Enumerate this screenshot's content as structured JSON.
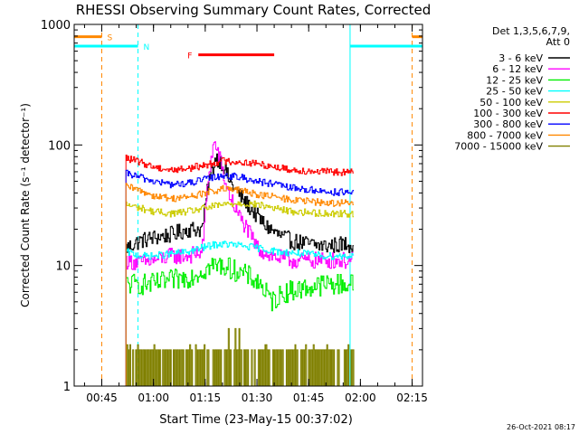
{
  "chart_data": {
    "type": "line",
    "title": "RHESSI Observing Summary Count Rates, Corrected",
    "xlabel": "Start Time (23-May-15 00:37:02)",
    "ylabel": "Corrected Count Rate (s⁻¹ detector⁻¹)",
    "yscale": "log",
    "ylim": [
      1,
      1000
    ],
    "xlim_minutes": [
      37.0,
      138.0
    ],
    "x_ticks": [
      {
        "label": "00:45",
        "value": 45
      },
      {
        "label": "01:00",
        "value": 60
      },
      {
        "label": "01:15",
        "value": 75
      },
      {
        "label": "01:30",
        "value": 90
      },
      {
        "label": "01:45",
        "value": 105
      },
      {
        "label": "02:00",
        "value": 120
      },
      {
        "label": "02:15",
        "value": 135
      }
    ],
    "y_ticks": [
      {
        "label": "1",
        "value": 1
      },
      {
        "label": "10",
        "value": 10
      },
      {
        "label": "100",
        "value": 100
      },
      {
        "label": "1000",
        "value": 1000
      }
    ],
    "legend": {
      "placement": "right",
      "header": [
        "Det 1,3,5,6,7,9,",
        "Att 0"
      ]
    },
    "series": [
      {
        "name": "3 - 6 keV",
        "color": "#000000",
        "x": [
          52,
          56,
          60,
          65,
          70,
          74,
          76,
          78,
          80,
          82,
          85,
          88,
          92,
          96,
          100,
          105,
          110,
          115,
          118
        ],
        "y": [
          14,
          16,
          17,
          18,
          20,
          20,
          50,
          80,
          70,
          50,
          38,
          30,
          22,
          18,
          16,
          15,
          14.5,
          15,
          15
        ]
      },
      {
        "name": "6 - 12 keV",
        "color": "#ff00ff",
        "x": [
          52,
          56,
          60,
          65,
          70,
          74,
          76,
          77.5,
          79,
          81,
          84,
          87,
          90,
          94,
          100,
          110,
          118
        ],
        "y": [
          11,
          10.5,
          11,
          12,
          12,
          13,
          60,
          105,
          80,
          45,
          28,
          20,
          14,
          12,
          11,
          11,
          11
        ]
      },
      {
        "name": "12 - 25 keV",
        "color": "#00ee00",
        "x": [
          52,
          56,
          60,
          65,
          70,
          74,
          77,
          80,
          84,
          88,
          91,
          94,
          98,
          104,
          110,
          118
        ],
        "y": [
          7,
          7,
          7,
          7.5,
          8,
          9,
          10,
          10,
          9,
          8,
          7,
          5,
          6,
          6.5,
          7,
          7
        ]
      },
      {
        "name": "25 - 50 keV",
        "color": "#00ffff",
        "x": [
          52,
          56,
          60,
          65,
          70,
          74,
          78,
          82,
          86,
          90,
          96,
          104,
          110,
          118
        ],
        "y": [
          13,
          12,
          12,
          12.5,
          13,
          14,
          15,
          15,
          14.5,
          14,
          13,
          12.5,
          12,
          12
        ]
      },
      {
        "name": "50 - 100 keV",
        "color": "#cccc00",
        "x": [
          52,
          56,
          60,
          65,
          70,
          75,
          80,
          85,
          90,
          95,
          100,
          110,
          118
        ],
        "y": [
          32,
          30,
          28,
          27,
          28,
          30,
          32,
          33,
          32,
          30,
          28,
          27,
          27
        ]
      },
      {
        "name": "100 - 300 keV",
        "color": "#ff0000",
        "x": [
          52,
          56,
          60,
          65,
          70,
          75,
          80,
          85,
          90,
          95,
          100,
          110,
          118
        ],
        "y": [
          78,
          72,
          66,
          62,
          64,
          68,
          74,
          72,
          70,
          66,
          62,
          60,
          59
        ]
      },
      {
        "name": "300 - 800 keV",
        "color": "#0000ff",
        "x": [
          52,
          56,
          60,
          65,
          70,
          75,
          80,
          85,
          90,
          95,
          100,
          110,
          118
        ],
        "y": [
          58,
          54,
          50,
          47,
          48,
          52,
          56,
          54,
          50,
          47,
          44,
          41,
          40
        ]
      },
      {
        "name": "800 - 7000 keV",
        "color": "#ff8800",
        "x": [
          52,
          56,
          60,
          65,
          70,
          75,
          80,
          85,
          90,
          95,
          100,
          110,
          118
        ],
        "y": [
          45,
          42,
          38,
          36,
          37,
          40,
          43,
          42,
          39,
          37,
          35,
          33,
          33
        ]
      },
      {
        "name": "7000 - 15000 keV",
        "color": "#808000",
        "x": [
          52,
          118
        ],
        "y": [
          2,
          2
        ]
      }
    ],
    "annotations": [
      {
        "label": "S",
        "color": "#ff8800",
        "x_start": 37.0,
        "x_end": 45.0,
        "level": 790,
        "marker_x": 45.0,
        "marker_end_x": 135.0
      },
      {
        "label": "N",
        "color": "#00ffff",
        "x_start": 37.0,
        "x_end": 55.5,
        "level": 660,
        "marker_x": 55.5,
        "marker_end_x": 117.0
      },
      {
        "label": "F",
        "color": "#ff0000",
        "x_start": 73.0,
        "x_end": 95.0,
        "level": 560
      }
    ],
    "footer_date": "26-Oct-2021 08:17"
  }
}
